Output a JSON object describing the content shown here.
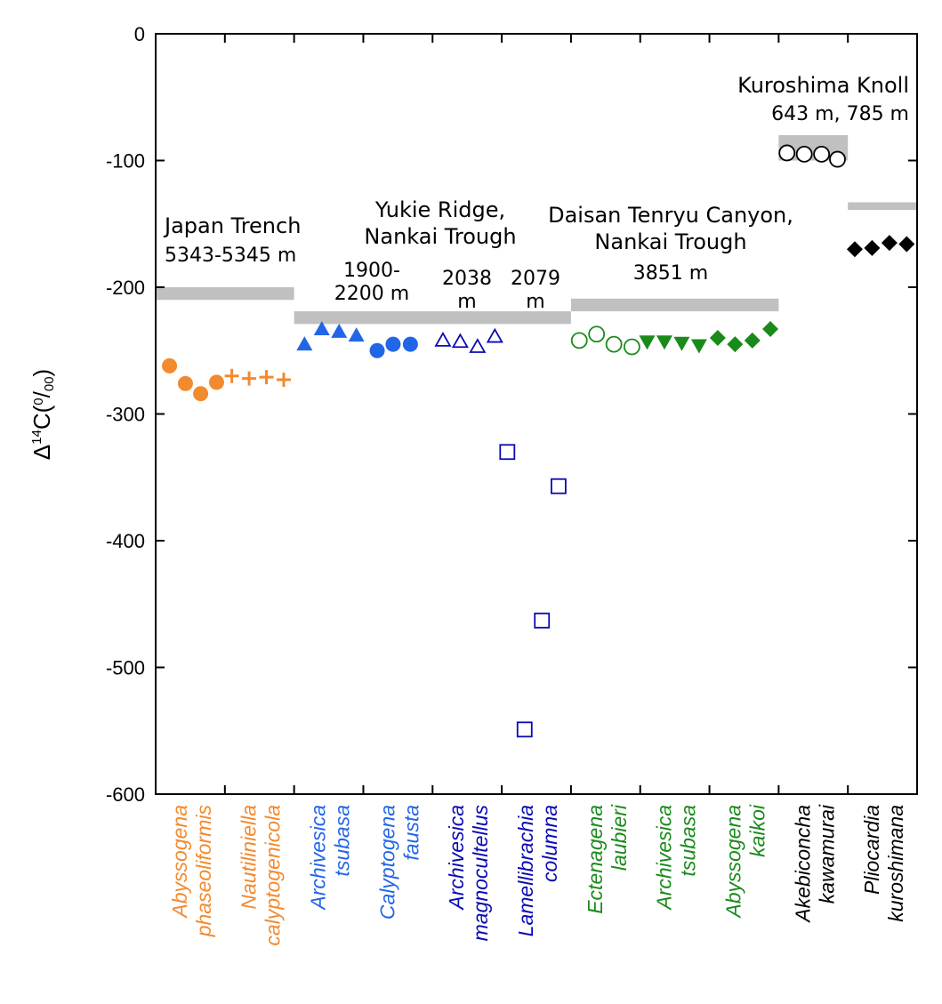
{
  "chart_data": {
    "type": "scatter",
    "ylabel_main": "Δ",
    "ylabel_sup": "14",
    "ylabel_rest": "C(",
    "ylabel_frac_num": "0",
    "ylabel_frac_slash": "/",
    "ylabel_frac_den": "00",
    "ylabel_close": ")",
    "ylim": [
      -600,
      0
    ],
    "yticks": [
      0,
      -100,
      -200,
      -300,
      -400,
      -500,
      -600
    ],
    "ytick_labels": [
      "0",
      "-100",
      "-200",
      "-300",
      "-400",
      "-500",
      "-600"
    ],
    "species": [
      {
        "line1": "Abyssogena",
        "line2": "phaseoliformis",
        "color": "#f28a2e"
      },
      {
        "line1": "Nautiliniella",
        "line2": "calyptogenicola",
        "color": "#f28a2e"
      },
      {
        "line1": "Archivesica",
        "line2": "tsubasa",
        "color": "#2266e8"
      },
      {
        "line1": "Calyptogena",
        "line2": "fausta",
        "color": "#2266e8"
      },
      {
        "line1": "Archivesica",
        "line2": "magnocultellus",
        "color": "#0a0ab4"
      },
      {
        "line1": "Lamellibrachia",
        "line2": "columna",
        "color": "#0a0ab4"
      },
      {
        "line1": "Ectenagena",
        "line2": "laubieri",
        "color": "#1a8a1a"
      },
      {
        "line1": "Archivesica",
        "line2": "tsubasa",
        "color": "#1a8a1a"
      },
      {
        "line1": "Abyssogena",
        "line2": "kaikoi",
        "color": "#1a8a1a"
      },
      {
        "line1": "Akebiconcha",
        "line2": "kawamurai",
        "color": "#000000"
      },
      {
        "line1": "Pliocardia",
        "line2": "kuroshimana",
        "color": "#000000"
      }
    ],
    "site_labels": [
      {
        "lines": [
          "Japan Trench"
        ],
        "sub": [
          "5343-5345 m"
        ]
      },
      {
        "lines": [
          "Yukie Ridge,",
          "Nankai Trough"
        ],
        "sub": []
      },
      {
        "lines": [
          "Daisan Tenryu Canyon,",
          "Nankai Trough"
        ],
        "sub": [
          "3851 m"
        ]
      },
      {
        "lines": [
          "Kuroshima Knoll"
        ],
        "sub": [
          "643 m, 785 m"
        ]
      }
    ],
    "depth_labels": [
      {
        "lines": [
          "1900-",
          "2200 m"
        ]
      },
      {
        "lines": [
          "2038",
          "m"
        ]
      },
      {
        "lines": [
          "2079",
          "m"
        ]
      }
    ],
    "bottom_water_bands": [
      {
        "x0": 0,
        "x1": 2,
        "y": -205,
        "thickness": 10
      },
      {
        "x0": 2,
        "x1": 6,
        "y": -224,
        "thickness": 10
      },
      {
        "x0": 6,
        "x1": 9,
        "y": -214,
        "thickness": 10
      },
      {
        "x0": 9,
        "x1": 10,
        "y": -90,
        "thickness": 20
      },
      {
        "x0": 10,
        "x1": 11,
        "y": -136,
        "thickness": 6
      }
    ],
    "series": [
      {
        "marker": "circle-filled",
        "color": "#f28a2e",
        "x": [
          0.2,
          0.43,
          0.65,
          0.88
        ],
        "y": [
          -262,
          -276,
          -284,
          -275
        ]
      },
      {
        "marker": "plus",
        "color": "#f28a2e",
        "x": [
          1.1,
          1.35,
          1.6,
          1.85
        ],
        "y": [
          -270,
          -272,
          -271,
          -273
        ]
      },
      {
        "marker": "triangle-up-filled",
        "color": "#2266e8",
        "x": [
          2.15,
          2.4,
          2.65,
          2.9
        ],
        "y": [
          -245,
          -233,
          -235,
          -238
        ]
      },
      {
        "marker": "circle-filled",
        "color": "#2266e8",
        "x": [
          3.2,
          3.43,
          3.68
        ],
        "y": [
          -250,
          -245,
          -245
        ]
      },
      {
        "marker": "triangle-up-open",
        "color": "#0a0ab4",
        "x": [
          4.15,
          4.4,
          4.65,
          4.9
        ],
        "y": [
          -242,
          -243,
          -247,
          -239
        ]
      },
      {
        "marker": "square-open",
        "color": "#0a0ab4",
        "x": [
          5.08,
          5.33,
          5.58,
          5.82
        ],
        "y": [
          -330,
          -549,
          -463,
          -357
        ]
      },
      {
        "marker": "circle-open",
        "color": "#1a8a1a",
        "x": [
          6.12,
          6.37,
          6.62,
          6.88
        ],
        "y": [
          -242,
          -237,
          -245,
          -247
        ]
      },
      {
        "marker": "triangle-down-filled",
        "color": "#1a8a1a",
        "x": [
          7.1,
          7.35,
          7.6,
          7.85
        ],
        "y": [
          -243,
          -243,
          -244,
          -246
        ]
      },
      {
        "marker": "diamond-filled",
        "color": "#1a8a1a",
        "x": [
          8.12,
          8.37,
          8.62,
          8.88
        ],
        "y": [
          -240,
          -245,
          -242,
          -233
        ]
      },
      {
        "marker": "circle-open",
        "color": "#000000",
        "x": [
          9.12,
          9.37,
          9.62,
          9.85
        ],
        "y": [
          -94,
          -95,
          -95,
          -99
        ]
      },
      {
        "marker": "diamond-filled",
        "color": "#000000",
        "x": [
          10.1,
          10.35,
          10.6,
          10.85
        ],
        "y": [
          -170,
          -169,
          -165,
          -166
        ]
      }
    ]
  }
}
